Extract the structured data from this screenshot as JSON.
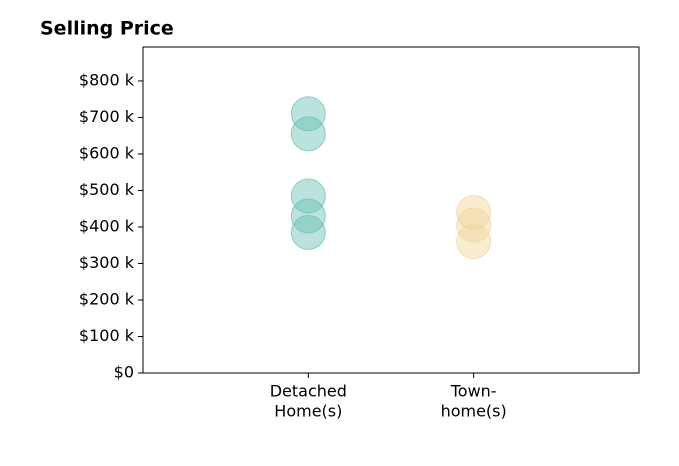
{
  "chart_data": {
    "type": "strip",
    "title": "Selling Price",
    "categories": [
      [
        "Detached",
        "Home(s)"
      ],
      [
        "Town-",
        "home(s)"
      ]
    ],
    "values": [
      [
        710,
        655,
        485,
        430,
        385
      ],
      [
        440,
        405,
        360
      ]
    ],
    "colors": [
      "#69bfb1",
      "#f0d49a"
    ],
    "ylim": [
      0,
      893
    ],
    "yticks": [
      {
        "value": 0,
        "label": "$0"
      },
      {
        "value": 100,
        "label": "$100 k"
      },
      {
        "value": 200,
        "label": "$200 k"
      },
      {
        "value": 300,
        "label": "$300 k"
      },
      {
        "value": 400,
        "label": "$400 k"
      },
      {
        "value": 500,
        "label": "$500 k"
      },
      {
        "value": 600,
        "label": "$600 k"
      },
      {
        "value": 700,
        "label": "$700 k"
      },
      {
        "value": 800,
        "label": "$800 k"
      }
    ]
  }
}
